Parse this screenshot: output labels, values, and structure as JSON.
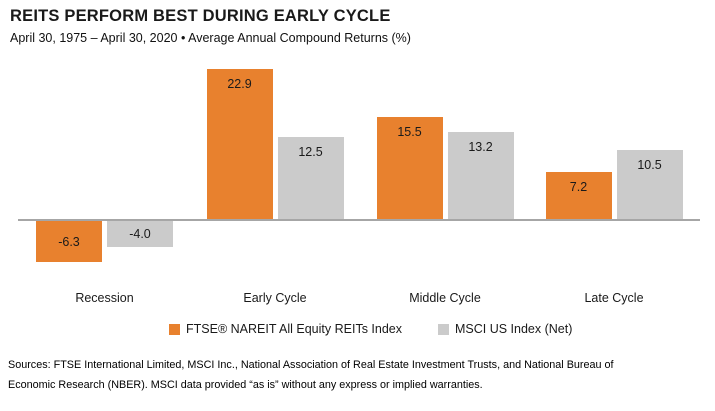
{
  "header": {
    "title": "REITS PERFORM BEST DURING EARLY CYCLE",
    "subtitle": "April 30, 1975 – April 30, 2020 • Average Annual Compound Returns (%)"
  },
  "chart_data": {
    "type": "bar",
    "title": "REITS PERFORM BEST DURING EARLY CYCLE",
    "subtitle": "April 30, 1975 – April 30, 2020 • Average Annual Compound Returns (%)",
    "categories": [
      "Recession",
      "Early Cycle",
      "Middle Cycle",
      "Late Cycle"
    ],
    "series": [
      {
        "name": "FTSE® NAREIT All Equity REITs Index",
        "color": "#E8812E",
        "values": [
          -6.3,
          22.9,
          15.5,
          7.2
        ]
      },
      {
        "name": "MSCI US Index (Net)",
        "color": "#CBCBCB",
        "values": [
          -4.0,
          12.5,
          13.2,
          10.5
        ]
      }
    ],
    "xlabel": "",
    "ylabel": "Average Annual Compound Returns (%)",
    "ylim": [
      -10,
      25
    ],
    "grid": false,
    "axis_ticks_visible": false,
    "value_labels_visible": true,
    "legend_position": "bottom",
    "zero_line_color": "#A6A6A6"
  },
  "sources": {
    "lines": [
      "Sources: FTSE International Limited, MSCI Inc., National Association of Real Estate Investment Trusts, and National Bureau of",
      "Economic Research (NBER). MSCI data provided “as is” without any express or implied warranties."
    ]
  }
}
